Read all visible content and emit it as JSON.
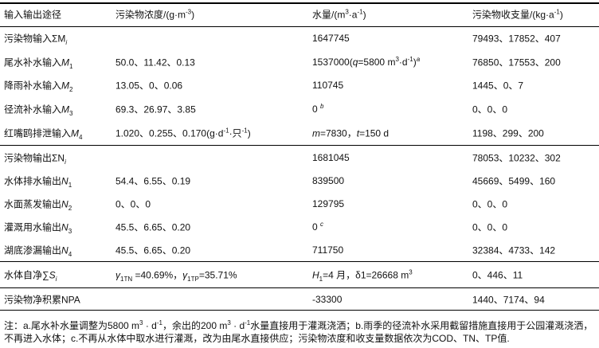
{
  "header": [
    [
      {
        "t": "输入输出途径"
      }
    ],
    [
      {
        "t": "污染物浓度/(g·m"
      },
      {
        "t": "-3",
        "s": "sup"
      },
      {
        "t": ")"
      }
    ],
    [
      {
        "t": "水量/(m"
      },
      {
        "t": "3",
        "s": "sup"
      },
      {
        "t": "·a"
      },
      {
        "t": "-1",
        "s": "sup"
      },
      {
        "t": ")"
      }
    ],
    [
      {
        "t": "污染物收支量/(kg·a"
      },
      {
        "t": "-1",
        "s": "sup"
      },
      {
        "t": ")"
      }
    ]
  ],
  "rows": [
    [
      [
        {
          "t": "污染物输入ΣM"
        },
        {
          "t": "i",
          "s": "sub"
        }
      ],
      [],
      [
        {
          "t": "1647745"
        }
      ],
      [
        {
          "t": "79493、17852、407"
        }
      ]
    ],
    [
      [
        {
          "t": "尾水补水输入"
        },
        {
          "t": "M",
          "s": "i"
        },
        {
          "t": "1",
          "s": "sub"
        }
      ],
      [
        {
          "t": "50.0、11.42、0.13"
        }
      ],
      [
        {
          "t": "1537000("
        },
        {
          "t": "q",
          "s": "i"
        },
        {
          "t": "=5800 m"
        },
        {
          "t": "3",
          "s": "sup"
        },
        {
          "t": "·d"
        },
        {
          "t": "-1",
          "s": "sup"
        },
        {
          "t": ")"
        },
        {
          "t": "a",
          "s": "sup"
        }
      ],
      [
        {
          "t": "76850、17553、200"
        }
      ]
    ],
    [
      [
        {
          "t": "降雨补水输入"
        },
        {
          "t": "M",
          "s": "i"
        },
        {
          "t": "2",
          "s": "sub"
        }
      ],
      [
        {
          "t": "13.05、0、0.06"
        }
      ],
      [
        {
          "t": "110745"
        }
      ],
      [
        {
          "t": "1445、0、7"
        }
      ]
    ],
    [
      [
        {
          "t": "径流补水输入"
        },
        {
          "t": "M",
          "s": "i"
        },
        {
          "t": "3",
          "s": "sub"
        }
      ],
      [
        {
          "t": "69.3、26.97、3.85"
        }
      ],
      [
        {
          "t": "0 "
        },
        {
          "t": "b",
          "s": "sup"
        }
      ],
      [
        {
          "t": "0、0、0"
        }
      ]
    ],
    [
      [
        {
          "t": "红嘴鸥排泄输入"
        },
        {
          "t": "M",
          "s": "i"
        },
        {
          "t": "4",
          "s": "sub"
        }
      ],
      [
        {
          "t": "1.020、0.255、0.170(g·d"
        },
        {
          "t": "-1",
          "s": "sup"
        },
        {
          "t": "·只"
        },
        {
          "t": "-1",
          "s": "sup"
        },
        {
          "t": ")"
        }
      ],
      [
        {
          "t": "m",
          "s": "i"
        },
        {
          "t": "=7830，"
        },
        {
          "t": "t",
          "s": "i"
        },
        {
          "t": "=150 d"
        }
      ],
      [
        {
          "t": "1198、299、200"
        }
      ]
    ],
    [
      [
        {
          "t": "污染物输出ΣN"
        },
        {
          "t": "i",
          "s": "sub"
        }
      ],
      [],
      [
        {
          "t": "1681045"
        }
      ],
      [
        {
          "t": "78053、10232、302"
        }
      ]
    ],
    [
      [
        {
          "t": "水体排水输出"
        },
        {
          "t": "N",
          "s": "i"
        },
        {
          "t": "1",
          "s": "sub"
        }
      ],
      [
        {
          "t": "54.4、6.55、0.19"
        }
      ],
      [
        {
          "t": "839500"
        }
      ],
      [
        {
          "t": "45669、5499、160"
        }
      ]
    ],
    [
      [
        {
          "t": "水面蒸发输出"
        },
        {
          "t": "N",
          "s": "i"
        },
        {
          "t": "2",
          "s": "sub"
        }
      ],
      [
        {
          "t": "0、0、0"
        }
      ],
      [
        {
          "t": "129795"
        }
      ],
      [
        {
          "t": "0、0、0"
        }
      ]
    ],
    [
      [
        {
          "t": "灌溉用水输出"
        },
        {
          "t": "N",
          "s": "i"
        },
        {
          "t": "3",
          "s": "sub"
        }
      ],
      [
        {
          "t": "45.5、6.65、0.20"
        }
      ],
      [
        {
          "t": "0 "
        },
        {
          "t": "c",
          "s": "sup"
        }
      ],
      [
        {
          "t": "0、0、0"
        }
      ]
    ],
    [
      [
        {
          "t": "湖底渗漏输出"
        },
        {
          "t": "N",
          "s": "i"
        },
        {
          "t": "4",
          "s": "sub"
        }
      ],
      [
        {
          "t": "45.5、6.65、0.20"
        }
      ],
      [
        {
          "t": "711750"
        }
      ],
      [
        {
          "t": "32384、4733、142"
        }
      ]
    ],
    [
      [
        {
          "t": "水体自净∑"
        },
        {
          "t": "S",
          "s": "i"
        },
        {
          "t": "i",
          "s": "sub"
        }
      ],
      [
        {
          "t": "γ",
          "s": "i"
        },
        {
          "t": "1TN",
          "s": "sub"
        },
        {
          "t": " =40.69%，"
        },
        {
          "t": "γ",
          "s": "i"
        },
        {
          "t": "1TP",
          "s": "sub"
        },
        {
          "t": "=35.71%"
        }
      ],
      [
        {
          "t": "H",
          "s": "i"
        },
        {
          "t": "1",
          "s": "sub"
        },
        {
          "t": "=4 月，δ1=26668 m"
        },
        {
          "t": "3",
          "s": "sup"
        }
      ],
      [
        {
          "t": "0、446、11"
        }
      ]
    ],
    [
      [
        {
          "t": "污染物净积累NPA"
        }
      ],
      [],
      [
        {
          "t": "-33300"
        }
      ],
      [
        {
          "t": "1440、7174、94"
        }
      ]
    ]
  ],
  "notes": [
    [
      {
        "t": "注：a.尾水补水量调整为5800 m"
      },
      {
        "t": "3",
        "s": "sup"
      },
      {
        "t": " · d"
      },
      {
        "t": "-1",
        "s": "sup"
      },
      {
        "t": "，余出的200 m"
      },
      {
        "t": "3",
        "s": "sup"
      },
      {
        "t": " · d"
      },
      {
        "t": "-1",
        "s": "sup"
      },
      {
        "t": "水量直接用于灌溉浇洒；b.雨季的径流补水采用截留措施直接用于公园灌溉浇洒，"
      }
    ],
    [
      {
        "t": "不再进入水体；c.不再从水体中取水进行灌溉，改为由尾水直接供应；污染物浓度和收支量数据依次为COD、TN、TP值."
      }
    ]
  ]
}
